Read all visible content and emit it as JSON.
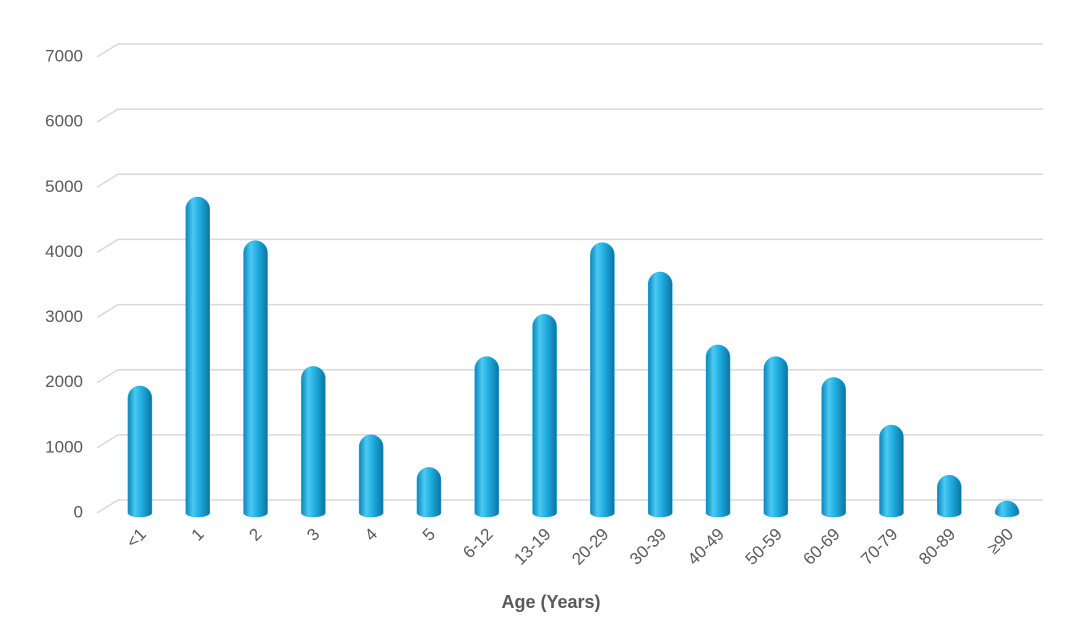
{
  "chart_data": {
    "type": "bar",
    "x_label": "Age (Years)",
    "categories": [
      "<1",
      "1",
      "2",
      "3",
      "4",
      "5",
      "6-12",
      "13-19",
      "20-29",
      "30-39",
      "40-49",
      "50-59",
      "60-69",
      "70-79",
      "80-89",
      "≥90"
    ],
    "values": [
      1950,
      4850,
      4180,
      2250,
      1200,
      700,
      2400,
      3050,
      4150,
      3700,
      2580,
      2400,
      2080,
      1350,
      580,
      120
    ],
    "color": "#1ea7dc",
    "ylim": [
      0,
      7000
    ],
    "yticks": [
      0,
      1000,
      2000,
      3000,
      4000,
      5000,
      6000,
      7000
    ],
    "grid": true
  }
}
